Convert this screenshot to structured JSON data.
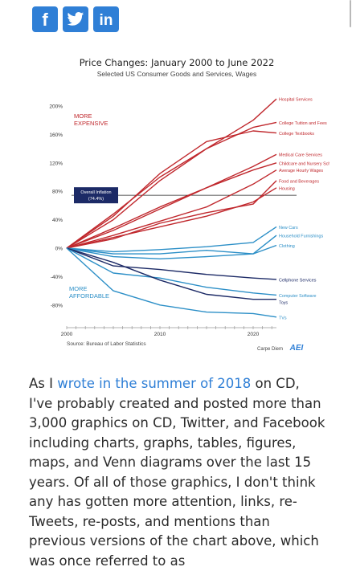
{
  "share": {
    "buttons": [
      {
        "network": "facebook",
        "icon": "facebook-icon",
        "label": "f"
      },
      {
        "network": "twitter",
        "icon": "twitter-icon",
        "label": ""
      },
      {
        "network": "linkedin",
        "icon": "linkedin-icon",
        "label": "in"
      }
    ],
    "color": "#2f7fd6"
  },
  "chart_data": {
    "type": "line",
    "title": "Price Changes: January 2000 to June 2022",
    "subtitle": "Selected US Consumer Goods and Services, Wages",
    "x": [
      2000,
      2005,
      2010,
      2015,
      2020,
      2022.5
    ],
    "xlim": [
      2000,
      2022.5
    ],
    "xticks": [
      "2000",
      "2010",
      "2020"
    ],
    "ylim": [
      -100,
      220
    ],
    "yticks": [
      "200%",
      "160%",
      "120%",
      "80%",
      "40%",
      "0%",
      "-40%",
      "-80%"
    ],
    "ytick_values": [
      200,
      160,
      120,
      80,
      40,
      0,
      -40,
      -80
    ],
    "grid": false,
    "annotations": {
      "more_expensive": "MORE EXPENSIVE",
      "more_affordable": "MORE AFFORDABLE",
      "overall_inflation": "Overall Inflation (74.4%)",
      "overall_inflation_value": 74.4
    },
    "source": "Source: Bureau of Labor Statistics",
    "credit": "Carpe Diem",
    "credit_logo": "AEI",
    "series": [
      {
        "name": "Hospital Services",
        "color": "#c0282d",
        "values": [
          0,
          48,
          100,
          140,
          180,
          210
        ]
      },
      {
        "name": "College Tuition and Fees",
        "color": "#c0282d",
        "values": [
          0,
          40,
          95,
          140,
          170,
          177
        ]
      },
      {
        "name": "College Textbooks",
        "color": "#c0282d",
        "values": [
          0,
          45,
          105,
          150,
          165,
          162
        ]
      },
      {
        "name": "Medical Care Services",
        "color": "#c0282d",
        "values": [
          0,
          28,
          58,
          85,
          115,
          132
        ]
      },
      {
        "name": "Childcare and Nursery School",
        "color": "#c0282d",
        "values": [
          0,
          25,
          55,
          85,
          110,
          120
        ]
      },
      {
        "name": "Average Hourly Wages",
        "color": "#c0282d",
        "values": [
          0,
          18,
          38,
          58,
          90,
          110
        ]
      },
      {
        "name": "Food and Beverages",
        "color": "#c0282d",
        "values": [
          0,
          13,
          35,
          50,
          62,
          95
        ]
      },
      {
        "name": "Housing",
        "color": "#c0282d",
        "values": [
          0,
          15,
          30,
          45,
          65,
          85
        ]
      },
      {
        "name": "New Cars",
        "color": "#2c8fc7",
        "values": [
          0,
          -5,
          -2,
          2,
          8,
          30
        ]
      },
      {
        "name": "Household Furnishings",
        "color": "#2c8fc7",
        "values": [
          0,
          -12,
          -15,
          -12,
          -8,
          18
        ]
      },
      {
        "name": "Clothing",
        "color": "#2c8fc7",
        "values": [
          0,
          -8,
          -8,
          -3,
          -8,
          4
        ]
      },
      {
        "name": "Cellphone Services",
        "color": "#1c2a66",
        "values": [
          0,
          -25,
          -30,
          -37,
          -42,
          -44
        ]
      },
      {
        "name": "Computer Software",
        "color": "#2c8fc7",
        "values": [
          0,
          -35,
          -42,
          -55,
          -63,
          -66
        ]
      },
      {
        "name": "Toys",
        "color": "#1c2a66",
        "values": [
          0,
          -20,
          -45,
          -65,
          -72,
          -72
        ]
      },
      {
        "name": "TVs",
        "color": "#2c8fc7",
        "values": [
          0,
          -60,
          -80,
          -90,
          -92,
          -97
        ]
      }
    ]
  },
  "article": {
    "pre_link": "As I ",
    "link_text": "wrote in the summer of 2018",
    "post_link": " on CD, I've probably created and posted more than 3,000 graphics on CD, Twitter, and Facebook including charts, graphs, tables, figures, maps, and Venn diagrams over the last 15 years. Of all of those graphics, I don't think any has gotten more attention, links, re-Tweets, re-posts, and mentions than previous versions of the chart above, which was once referred to as"
  }
}
